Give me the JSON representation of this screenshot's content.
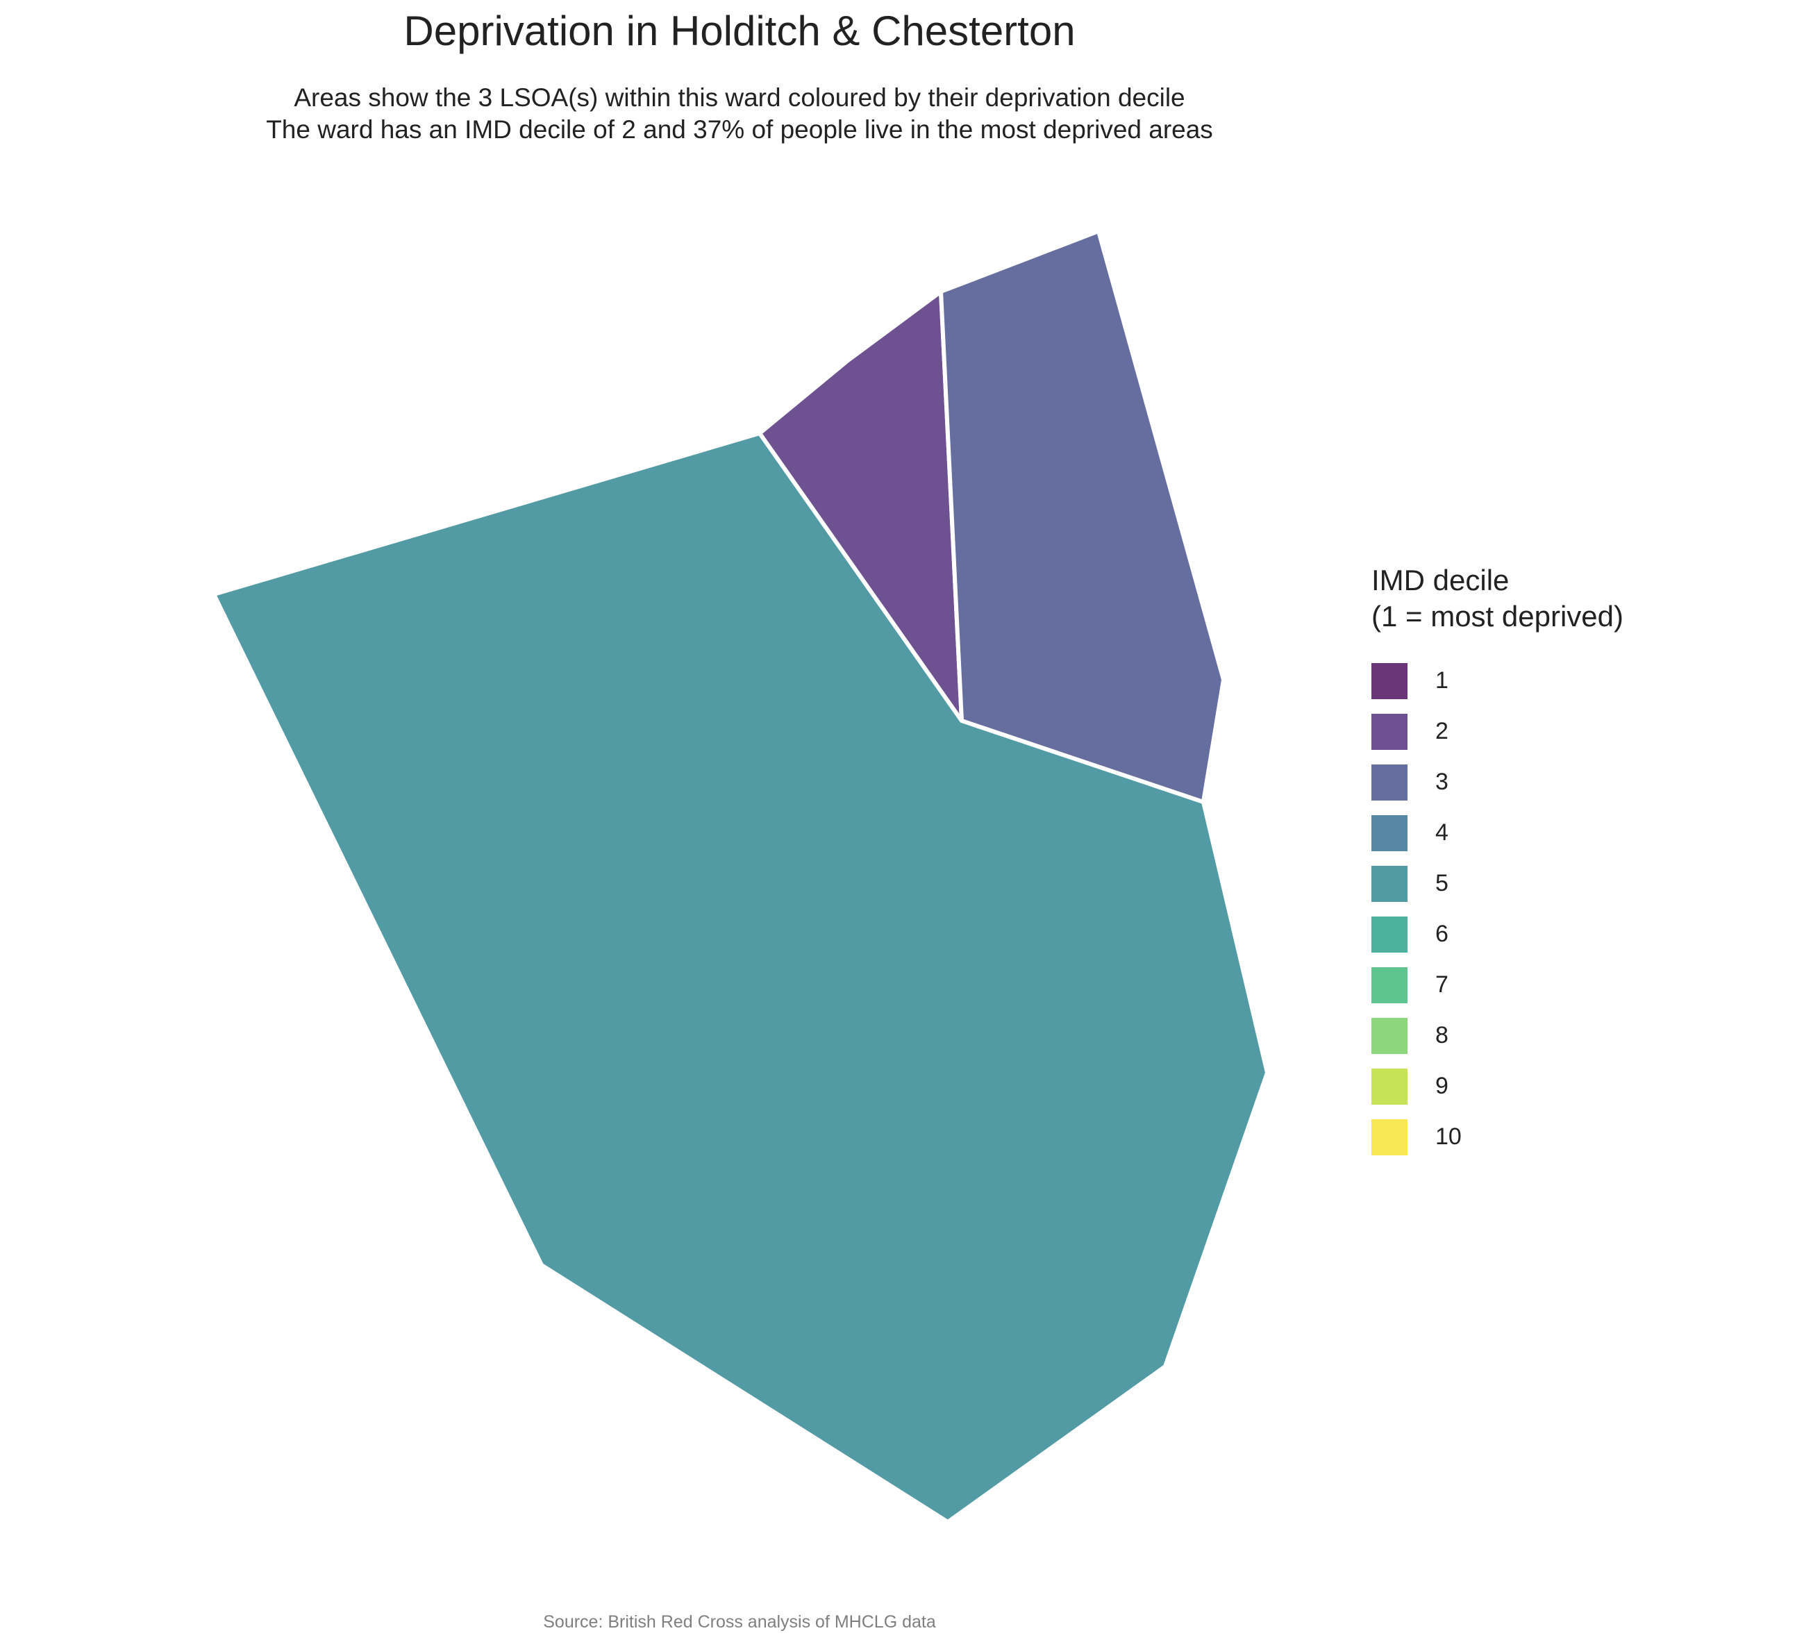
{
  "title": "Deprivation in Holditch & Chesterton",
  "subtitle": {
    "line1": "Areas show the 3 LSOA(s) within this ward coloured by their deprivation decile",
    "line2": "The ward has an IMD decile of 2 and 37% of people live in the most deprived areas"
  },
  "legend": {
    "title_line1": "IMD decile",
    "title_line2": "(1 = most deprived)",
    "items": [
      {
        "label": "1",
        "color": "#6A3677"
      },
      {
        "label": "2",
        "color": "#6D5191"
      },
      {
        "label": "3",
        "color": "#656E9F"
      },
      {
        "label": "4",
        "color": "#5887A4"
      },
      {
        "label": "5",
        "color": "#529BA4"
      },
      {
        "label": "6",
        "color": "#4EB19E"
      },
      {
        "label": "7",
        "color": "#5EC590"
      },
      {
        "label": "8",
        "color": "#8CD67C"
      },
      {
        "label": "9",
        "color": "#C6E358"
      },
      {
        "label": "10",
        "color": "#F7E755"
      }
    ]
  },
  "regions": [
    {
      "name": "lsoa-a",
      "decile": 5
    },
    {
      "name": "lsoa-b",
      "decile": 2
    },
    {
      "name": "lsoa-c",
      "decile": 3
    }
  ],
  "source": "Source: British Red Cross analysis of MHCLG data"
}
